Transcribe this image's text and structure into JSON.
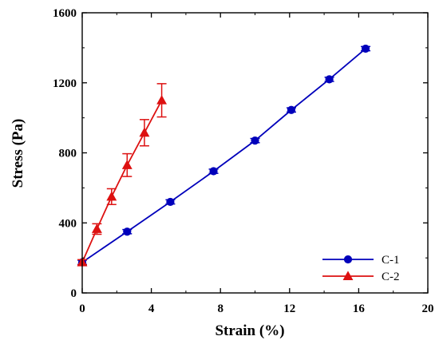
{
  "chart_data": {
    "type": "line",
    "title": "",
    "xlabel": "Strain (%)",
    "ylabel": "Stress (Pa)",
    "xlim": [
      0,
      20
    ],
    "ylim": [
      0,
      1600
    ],
    "xticks": [
      0,
      4,
      8,
      12,
      16,
      20
    ],
    "yticks": [
      0,
      400,
      800,
      1200,
      1600
    ],
    "grid": false,
    "legend_position": "bottom-right",
    "series": [
      {
        "name": "C-1",
        "color": "#0000bb",
        "marker": "circle",
        "x": [
          0,
          2.6,
          5.1,
          7.6,
          10.0,
          12.1,
          14.3,
          16.4
        ],
        "y": [
          175,
          350,
          520,
          695,
          870,
          1045,
          1220,
          1395
        ],
        "err": [
          12,
          12,
          12,
          12,
          12,
          12,
          12,
          12
        ]
      },
      {
        "name": "C-2",
        "color": "#dd1111",
        "marker": "triangle",
        "x": [
          0,
          0.85,
          1.7,
          2.6,
          3.6,
          4.6
        ],
        "y": [
          175,
          365,
          550,
          730,
          915,
          1100
        ],
        "err": [
          15,
          30,
          45,
          65,
          75,
          95
        ]
      }
    ]
  }
}
